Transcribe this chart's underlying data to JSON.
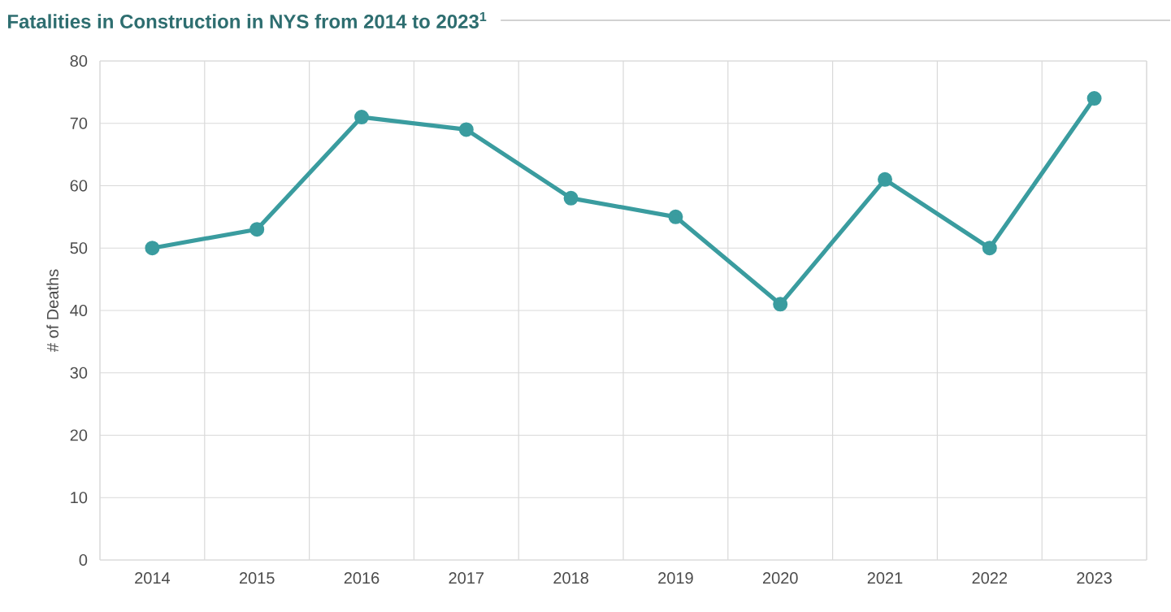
{
  "chart_data": {
    "type": "line",
    "title": "Fatalities in Construction in NYS from 2014 to 2023$^{1}$",
    "ylabel": "# of Deaths",
    "categories": [
      "2014",
      "2015",
      "2016",
      "2017",
      "2018",
      "2019",
      "2020",
      "2021",
      "2022",
      "2023"
    ],
    "series": [
      {
        "color": "#3a9c9f",
        "values": [
          50,
          53,
          71,
          69,
          58,
          55,
          41,
          61,
          50,
          74
        ]
      }
    ],
    "ylim": [
      0,
      80
    ],
    "yticks": [
      0,
      10,
      20,
      30,
      40,
      50,
      60,
      70,
      80
    ],
    "grid": true,
    "marker": "circle",
    "line_style": "solid"
  }
}
